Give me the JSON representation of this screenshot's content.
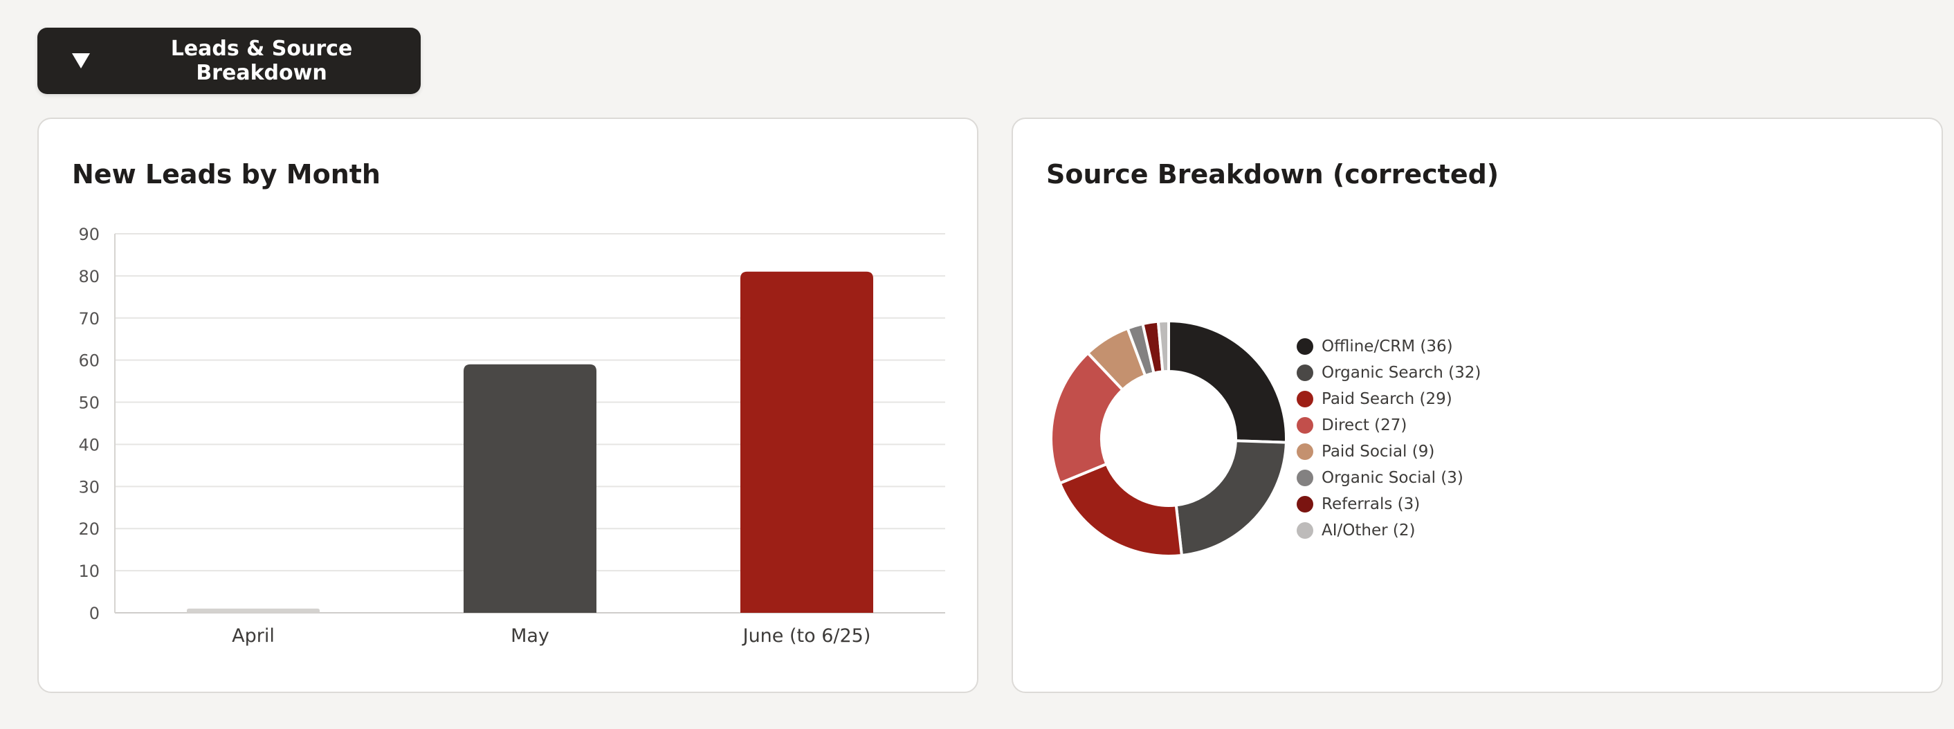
{
  "section": {
    "toggle_label": "Leads & Source Breakdown",
    "expanded": true
  },
  "chart_data": [
    {
      "type": "bar",
      "title": "New Leads by Month",
      "xlabel": "",
      "ylabel": "",
      "categories": [
        "April",
        "May",
        "June (to 6/25)"
      ],
      "values": [
        1,
        59,
        81
      ],
      "colors": [
        "#d4d2cf",
        "#4a4846",
        "#9d1f16"
      ],
      "ylim": [
        0,
        90
      ],
      "yticks": [
        "0",
        "10",
        "20",
        "30",
        "40",
        "50",
        "60",
        "70",
        "80",
        "90"
      ],
      "grid": true
    },
    {
      "type": "pie",
      "donut": true,
      "title": "Source Breakdown (corrected)",
      "legend_position": "right",
      "slices": [
        {
          "label": "Offline/CRM (36)",
          "value": 36,
          "color": "#221f1e"
        },
        {
          "label": "Organic Search (32)",
          "value": 32,
          "color": "#4a4846"
        },
        {
          "label": "Paid Search (29)",
          "value": 29,
          "color": "#9d1f16"
        },
        {
          "label": "Direct (27)",
          "value": 27,
          "color": "#c24f4b"
        },
        {
          "label": "Paid Social (9)",
          "value": 9,
          "color": "#c4916f"
        },
        {
          "label": "Organic Social (3)",
          "value": 3,
          "color": "#838181"
        },
        {
          "label": "Referrals (3)",
          "value": 3,
          "color": "#7a1410"
        },
        {
          "label": "AI/Other (2)",
          "value": 2,
          "color": "#bdbbba"
        }
      ]
    }
  ]
}
